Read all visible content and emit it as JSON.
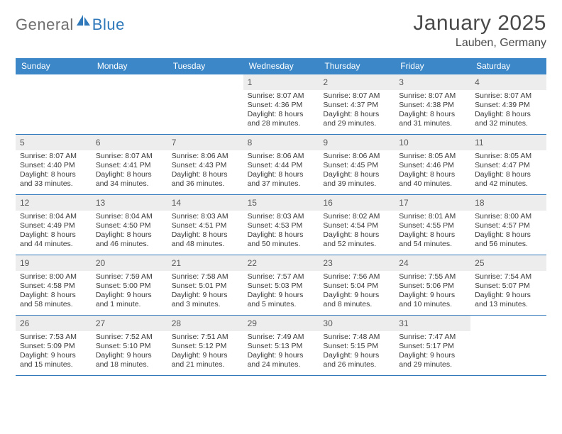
{
  "logo": {
    "general": "General",
    "blue": "Blue"
  },
  "title": "January 2025",
  "location": "Lauben, Germany",
  "colors": {
    "header_bg": "#3b87c8",
    "header_text": "#ffffff",
    "daynum_bg": "#ededed",
    "border": "#2f78ba",
    "logo_general": "#6e6e6e",
    "logo_blue": "#2f78ba",
    "body_text": "#3a3a3a"
  },
  "day_names": [
    "Sunday",
    "Monday",
    "Tuesday",
    "Wednesday",
    "Thursday",
    "Friday",
    "Saturday"
  ],
  "weeks": [
    [
      {
        "n": "",
        "sr": "",
        "ss": "",
        "dl": ""
      },
      {
        "n": "",
        "sr": "",
        "ss": "",
        "dl": ""
      },
      {
        "n": "",
        "sr": "",
        "ss": "",
        "dl": ""
      },
      {
        "n": "1",
        "sr": "Sunrise: 8:07 AM",
        "ss": "Sunset: 4:36 PM",
        "dl": "Daylight: 8 hours and 28 minutes."
      },
      {
        "n": "2",
        "sr": "Sunrise: 8:07 AM",
        "ss": "Sunset: 4:37 PM",
        "dl": "Daylight: 8 hours and 29 minutes."
      },
      {
        "n": "3",
        "sr": "Sunrise: 8:07 AM",
        "ss": "Sunset: 4:38 PM",
        "dl": "Daylight: 8 hours and 31 minutes."
      },
      {
        "n": "4",
        "sr": "Sunrise: 8:07 AM",
        "ss": "Sunset: 4:39 PM",
        "dl": "Daylight: 8 hours and 32 minutes."
      }
    ],
    [
      {
        "n": "5",
        "sr": "Sunrise: 8:07 AM",
        "ss": "Sunset: 4:40 PM",
        "dl": "Daylight: 8 hours and 33 minutes."
      },
      {
        "n": "6",
        "sr": "Sunrise: 8:07 AM",
        "ss": "Sunset: 4:41 PM",
        "dl": "Daylight: 8 hours and 34 minutes."
      },
      {
        "n": "7",
        "sr": "Sunrise: 8:06 AM",
        "ss": "Sunset: 4:43 PM",
        "dl": "Daylight: 8 hours and 36 minutes."
      },
      {
        "n": "8",
        "sr": "Sunrise: 8:06 AM",
        "ss": "Sunset: 4:44 PM",
        "dl": "Daylight: 8 hours and 37 minutes."
      },
      {
        "n": "9",
        "sr": "Sunrise: 8:06 AM",
        "ss": "Sunset: 4:45 PM",
        "dl": "Daylight: 8 hours and 39 minutes."
      },
      {
        "n": "10",
        "sr": "Sunrise: 8:05 AM",
        "ss": "Sunset: 4:46 PM",
        "dl": "Daylight: 8 hours and 40 minutes."
      },
      {
        "n": "11",
        "sr": "Sunrise: 8:05 AM",
        "ss": "Sunset: 4:47 PM",
        "dl": "Daylight: 8 hours and 42 minutes."
      }
    ],
    [
      {
        "n": "12",
        "sr": "Sunrise: 8:04 AM",
        "ss": "Sunset: 4:49 PM",
        "dl": "Daylight: 8 hours and 44 minutes."
      },
      {
        "n": "13",
        "sr": "Sunrise: 8:04 AM",
        "ss": "Sunset: 4:50 PM",
        "dl": "Daylight: 8 hours and 46 minutes."
      },
      {
        "n": "14",
        "sr": "Sunrise: 8:03 AM",
        "ss": "Sunset: 4:51 PM",
        "dl": "Daylight: 8 hours and 48 minutes."
      },
      {
        "n": "15",
        "sr": "Sunrise: 8:03 AM",
        "ss": "Sunset: 4:53 PM",
        "dl": "Daylight: 8 hours and 50 minutes."
      },
      {
        "n": "16",
        "sr": "Sunrise: 8:02 AM",
        "ss": "Sunset: 4:54 PM",
        "dl": "Daylight: 8 hours and 52 minutes."
      },
      {
        "n": "17",
        "sr": "Sunrise: 8:01 AM",
        "ss": "Sunset: 4:55 PM",
        "dl": "Daylight: 8 hours and 54 minutes."
      },
      {
        "n": "18",
        "sr": "Sunrise: 8:00 AM",
        "ss": "Sunset: 4:57 PM",
        "dl": "Daylight: 8 hours and 56 minutes."
      }
    ],
    [
      {
        "n": "19",
        "sr": "Sunrise: 8:00 AM",
        "ss": "Sunset: 4:58 PM",
        "dl": "Daylight: 8 hours and 58 minutes."
      },
      {
        "n": "20",
        "sr": "Sunrise: 7:59 AM",
        "ss": "Sunset: 5:00 PM",
        "dl": "Daylight: 9 hours and 1 minute."
      },
      {
        "n": "21",
        "sr": "Sunrise: 7:58 AM",
        "ss": "Sunset: 5:01 PM",
        "dl": "Daylight: 9 hours and 3 minutes."
      },
      {
        "n": "22",
        "sr": "Sunrise: 7:57 AM",
        "ss": "Sunset: 5:03 PM",
        "dl": "Daylight: 9 hours and 5 minutes."
      },
      {
        "n": "23",
        "sr": "Sunrise: 7:56 AM",
        "ss": "Sunset: 5:04 PM",
        "dl": "Daylight: 9 hours and 8 minutes."
      },
      {
        "n": "24",
        "sr": "Sunrise: 7:55 AM",
        "ss": "Sunset: 5:06 PM",
        "dl": "Daylight: 9 hours and 10 minutes."
      },
      {
        "n": "25",
        "sr": "Sunrise: 7:54 AM",
        "ss": "Sunset: 5:07 PM",
        "dl": "Daylight: 9 hours and 13 minutes."
      }
    ],
    [
      {
        "n": "26",
        "sr": "Sunrise: 7:53 AM",
        "ss": "Sunset: 5:09 PM",
        "dl": "Daylight: 9 hours and 15 minutes."
      },
      {
        "n": "27",
        "sr": "Sunrise: 7:52 AM",
        "ss": "Sunset: 5:10 PM",
        "dl": "Daylight: 9 hours and 18 minutes."
      },
      {
        "n": "28",
        "sr": "Sunrise: 7:51 AM",
        "ss": "Sunset: 5:12 PM",
        "dl": "Daylight: 9 hours and 21 minutes."
      },
      {
        "n": "29",
        "sr": "Sunrise: 7:49 AM",
        "ss": "Sunset: 5:13 PM",
        "dl": "Daylight: 9 hours and 24 minutes."
      },
      {
        "n": "30",
        "sr": "Sunrise: 7:48 AM",
        "ss": "Sunset: 5:15 PM",
        "dl": "Daylight: 9 hours and 26 minutes."
      },
      {
        "n": "31",
        "sr": "Sunrise: 7:47 AM",
        "ss": "Sunset: 5:17 PM",
        "dl": "Daylight: 9 hours and 29 minutes."
      },
      {
        "n": "",
        "sr": "",
        "ss": "",
        "dl": ""
      }
    ]
  ]
}
